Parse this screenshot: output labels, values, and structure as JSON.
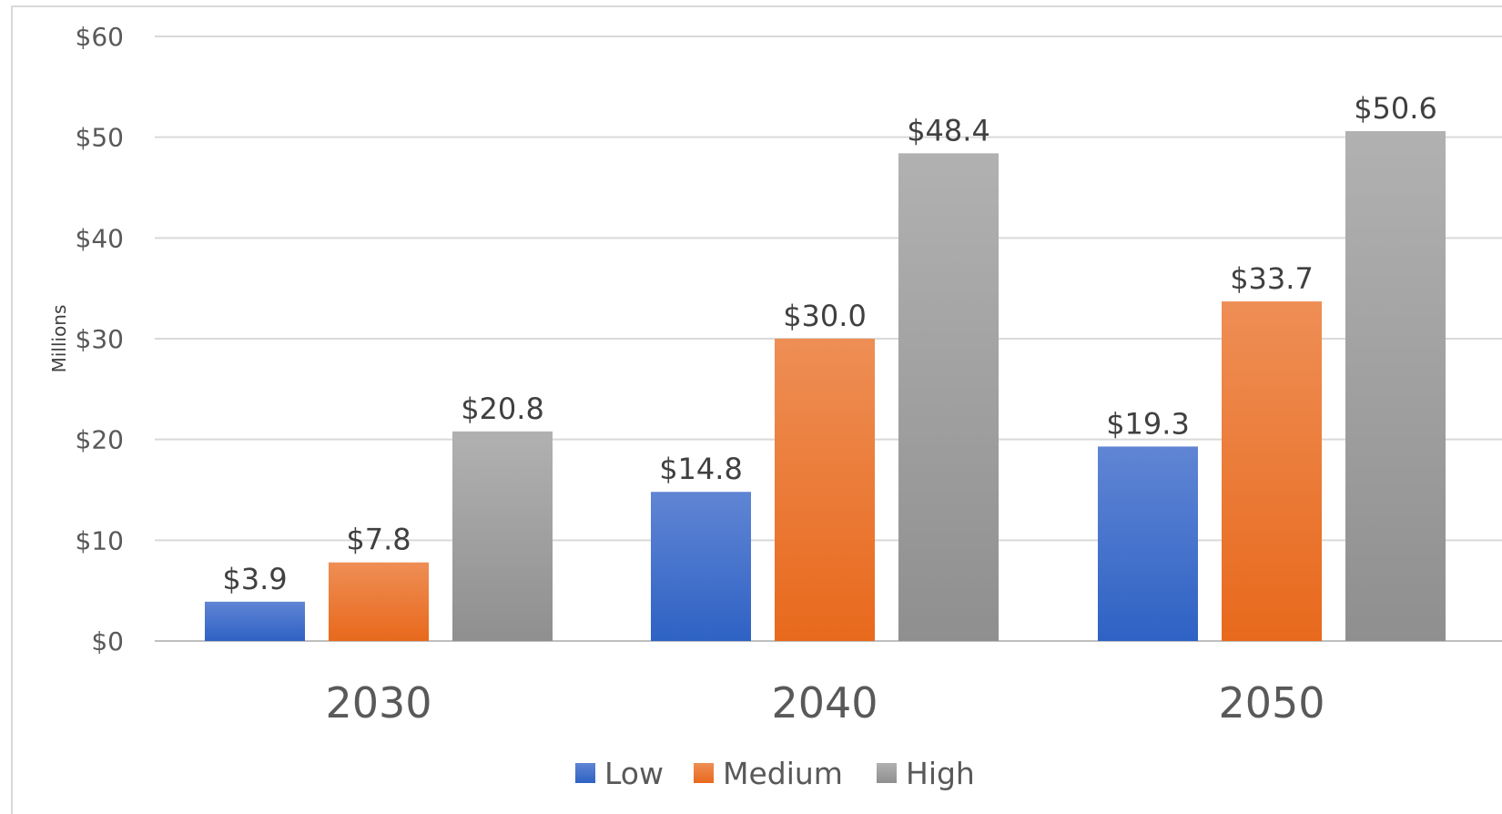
{
  "chart_data": {
    "type": "bar",
    "categories": [
      "2030",
      "2040",
      "2050"
    ],
    "series": [
      {
        "name": "Low",
        "values": [
          3.9,
          14.8,
          19.3
        ],
        "labels": [
          "$3.9",
          "$14.8",
          "$19.3"
        ],
        "color_top": "#6085d4",
        "color_bottom": "#2e62c4"
      },
      {
        "name": "Medium",
        "values": [
          7.8,
          30.0,
          33.7
        ],
        "labels": [
          "$7.8",
          "$30.0",
          "$33.7"
        ],
        "color_top": "#ee8e55",
        "color_bottom": "#e8691c"
      },
      {
        "name": "High",
        "values": [
          20.8,
          48.4,
          50.6
        ],
        "labels": [
          "$20.8",
          "$48.4",
          "$50.6"
        ],
        "color_top": "#b1b1b1",
        "color_bottom": "#8f8f8f"
      }
    ],
    "ylabel": "Millions",
    "ylim": [
      0,
      60
    ],
    "yticks": [
      0,
      10,
      20,
      30,
      40,
      50,
      60
    ],
    "ytick_labels": [
      "$0",
      "$10",
      "$20",
      "$30",
      "$40",
      "$50",
      "$60"
    ],
    "grid": true,
    "legend_position": "bottom"
  }
}
